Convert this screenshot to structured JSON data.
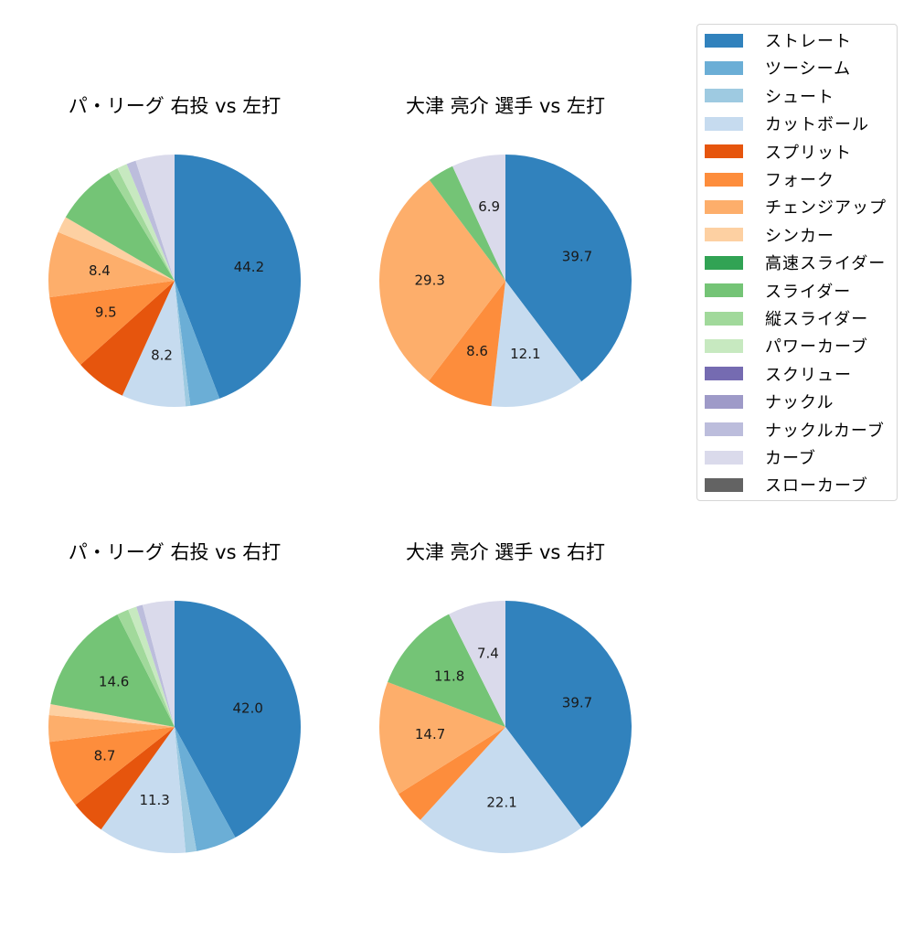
{
  "legend": {
    "items": [
      {
        "label": "ストレート",
        "color": "#3182bd"
      },
      {
        "label": "ツーシーム",
        "color": "#6baed6"
      },
      {
        "label": "シュート",
        "color": "#9ecae1"
      },
      {
        "label": "カットボール",
        "color": "#c6dbef"
      },
      {
        "label": "スプリット",
        "color": "#e6550d"
      },
      {
        "label": "フォーク",
        "color": "#fd8d3c"
      },
      {
        "label": "チェンジアップ",
        "color": "#fdae6b"
      },
      {
        "label": "シンカー",
        "color": "#fdd0a2"
      },
      {
        "label": "高速スライダー",
        "color": "#31a354"
      },
      {
        "label": "スライダー",
        "color": "#74c476"
      },
      {
        "label": "縦スライダー",
        "color": "#a1d99b"
      },
      {
        "label": "パワーカーブ",
        "color": "#c7e9c0"
      },
      {
        "label": "スクリュー",
        "color": "#756bb1"
      },
      {
        "label": "ナックル",
        "color": "#9e9ac8"
      },
      {
        "label": "ナックルカーブ",
        "color": "#bcbddc"
      },
      {
        "label": "カーブ",
        "color": "#dadaeb"
      },
      {
        "label": "スローカーブ",
        "color": "#636363"
      }
    ]
  },
  "chart_data": [
    {
      "type": "pie",
      "title": "パ・リーグ 右投 vs 左打",
      "label_threshold": 8,
      "categories": [
        "ストレート",
        "ツーシーム",
        "シュート",
        "カットボール",
        "スプリット",
        "フォーク",
        "チェンジアップ",
        "シンカー",
        "スライダー",
        "縦スライダー",
        "パワーカーブ",
        "ナックルカーブ",
        "カーブ"
      ],
      "values": [
        44.2,
        3.8,
        0.6,
        8.2,
        6.6,
        9.5,
        8.4,
        2.1,
        7.9,
        1.2,
        1.3,
        1.2,
        5.0
      ],
      "start_angle": 90,
      "counterclock": false
    },
    {
      "type": "pie",
      "title": "大津 亮介 選手 vs 左打",
      "label_threshold": 5,
      "categories": [
        "ストレート",
        "カットボール",
        "フォーク",
        "チェンジアップ",
        "スライダー",
        "カーブ"
      ],
      "values": [
        39.7,
        12.1,
        8.6,
        29.3,
        3.4,
        6.9
      ],
      "start_angle": 90,
      "counterclock": false
    },
    {
      "type": "pie",
      "title": "パ・リーグ 右投 vs 右打",
      "label_threshold": 8,
      "categories": [
        "ストレート",
        "ツーシーム",
        "シュート",
        "カットボール",
        "スプリット",
        "フォーク",
        "チェンジアップ",
        "シンカー",
        "スライダー",
        "縦スライダー",
        "パワーカーブ",
        "ナックルカーブ",
        "カーブ"
      ],
      "values": [
        42.0,
        5.2,
        1.4,
        11.3,
        4.5,
        8.7,
        3.4,
        1.4,
        14.6,
        1.5,
        1.1,
        0.8,
        4.1
      ],
      "start_angle": 90,
      "counterclock": false
    },
    {
      "type": "pie",
      "title": "大津 亮介 選手 vs 右打",
      "label_threshold": 5,
      "categories": [
        "ストレート",
        "カットボール",
        "フォーク",
        "チェンジアップ",
        "スライダー",
        "カーブ"
      ],
      "values": [
        39.7,
        22.1,
        4.3,
        14.7,
        11.8,
        7.4
      ],
      "start_angle": 90,
      "counterclock": false
    }
  ]
}
